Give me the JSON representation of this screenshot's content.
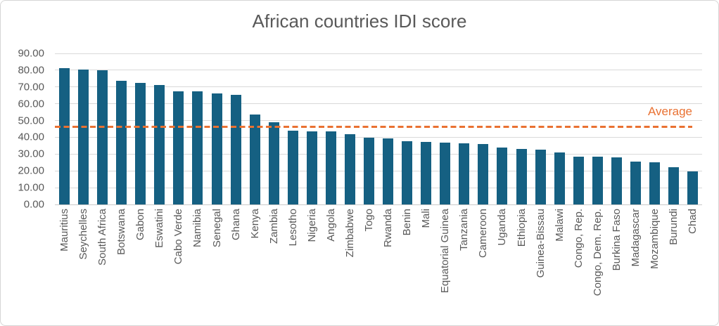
{
  "chart_data": {
    "type": "bar",
    "title": "African countries IDI score",
    "xlabel": "",
    "ylabel": "",
    "ylim": [
      0,
      90
    ],
    "grid": true,
    "legend": false,
    "bar_color": "#156082",
    "grid_color": "#d9d9d9",
    "text_color": "#595959",
    "average_color": "#E97132",
    "yticks": [
      {
        "value": 0,
        "label": "0.00"
      },
      {
        "value": 10,
        "label": "10.00"
      },
      {
        "value": 20,
        "label": "20.00"
      },
      {
        "value": 30,
        "label": "30.00"
      },
      {
        "value": 40,
        "label": "40.00"
      },
      {
        "value": 50,
        "label": "50.00"
      },
      {
        "value": 60,
        "label": "60.00"
      },
      {
        "value": 70,
        "label": "70.00"
      },
      {
        "value": 80,
        "label": "80.00"
      },
      {
        "value": 90,
        "label": "90.00"
      }
    ],
    "categories": [
      "Mauritius",
      "Seychelles",
      "South Africa",
      "Botswana",
      "Gabon",
      "Eswatini",
      "Cabo Verde",
      "Namibia",
      "Senegal",
      "Ghana",
      "Kenya",
      "Zambia",
      "Lesotho",
      "Nigeria",
      "Angola",
      "Zimbabwe",
      "Togo",
      "Rwanda",
      "Benin",
      "Mali",
      "Equatorial Guinea",
      "Tanzania",
      "Cameroon",
      "Uganda",
      "Ethiopia",
      "Guinea-Bissau",
      "Malawi",
      "Congo, Rep.",
      "Congo, Dem. Rep.",
      "Burkina Faso",
      "Madagascar",
      "Mozambique",
      "Burundi",
      "Chad"
    ],
    "values": [
      81.2,
      80.5,
      80.1,
      73.7,
      72.4,
      71.2,
      67.6,
      67.5,
      66.0,
      65.3,
      53.6,
      48.8,
      43.8,
      43.7,
      43.5,
      41.8,
      39.7,
      39.4,
      37.6,
      37.3,
      36.8,
      36.4,
      36.0,
      34.1,
      33.2,
      32.5,
      31.1,
      28.4,
      28.3,
      27.9,
      25.6,
      25.1,
      22.3,
      19.6
    ],
    "average_line": {
      "label": "Average",
      "value": 46.2
    }
  }
}
